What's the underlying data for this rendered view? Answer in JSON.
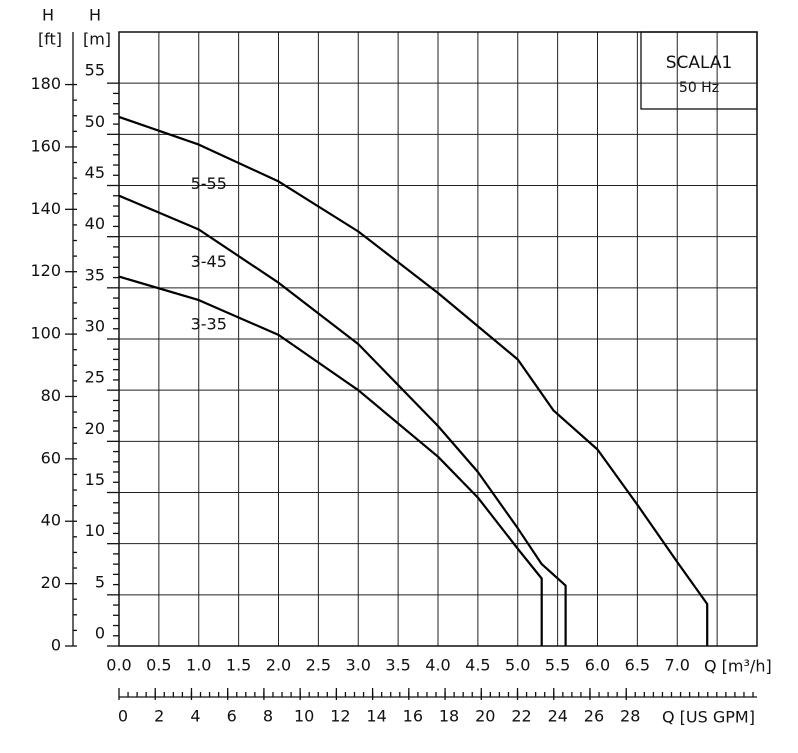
{
  "chart_data": {
    "type": "line",
    "title": "SCALA1",
    "subtitle": "50 Hz",
    "x_label": "Q [m³/h]",
    "x2_label": "Q [US GPM]",
    "y_label": "H",
    "y_unit": "[m]",
    "y2_label": "H",
    "y2_unit": "[ft]",
    "xlim": [
      0,
      8
    ],
    "xticks": [
      {
        "value": 0,
        "label": "0.0"
      },
      0.5,
      {
        "value": 1,
        "label": "1.0"
      },
      1.5,
      {
        "value": 2,
        "label": "2.0"
      },
      2.5,
      {
        "value": 3,
        "label": "3.0"
      },
      3.5,
      {
        "value": 4,
        "label": "4.0"
      },
      4.5,
      {
        "value": 5,
        "label": "5.0"
      },
      5.5,
      {
        "value": 6,
        "label": "6.0"
      },
      6.5,
      {
        "value": 7,
        "label": "7.0"
      }
    ],
    "x2lim": [
      0,
      35.22
    ],
    "x2ticks": [
      0,
      2,
      4,
      6,
      8,
      10,
      12,
      14,
      16,
      18,
      20,
      22,
      24,
      26,
      28
    ],
    "ylim": [
      0,
      60
    ],
    "yticks": [
      0,
      5,
      10,
      15,
      20,
      25,
      30,
      35,
      40,
      45,
      50,
      55
    ],
    "y2lim": [
      0,
      196.85
    ],
    "y2ticks": [
      0,
      20,
      40,
      60,
      80,
      100,
      120,
      140,
      160,
      180
    ],
    "grid": true,
    "series": [
      {
        "name": "5-55",
        "color": "#000000",
        "x": [
          0,
          1,
          2,
          3,
          4,
          5,
          5.45,
          6,
          6.5,
          7,
          7.375,
          7.375
        ],
        "values": [
          51.7,
          49,
          45.4,
          40.5,
          34.5,
          28,
          23,
          19.2,
          13.8,
          8.2,
          4.1,
          0
        ]
      },
      {
        "name": "3-45",
        "color": "#000000",
        "x": [
          0,
          1,
          2,
          3,
          4,
          4.5,
          5,
          5.3,
          5.6,
          5.6
        ],
        "values": [
          44,
          40.7,
          35.5,
          29.5,
          21.5,
          17,
          11.5,
          8,
          5.9,
          0
        ]
      },
      {
        "name": "3-35",
        "color": "#000000",
        "x": [
          0,
          1,
          2,
          3,
          4,
          4.5,
          5,
          5.3,
          5.3
        ],
        "values": [
          36.1,
          33.8,
          30.4,
          25,
          18.5,
          14.5,
          9.5,
          6.6,
          0
        ]
      }
    ]
  }
}
